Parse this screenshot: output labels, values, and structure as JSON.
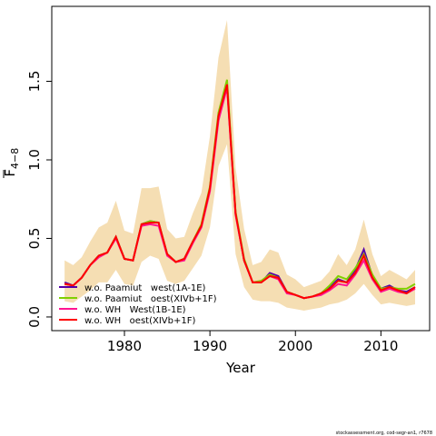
{
  "chart_data": {
    "type": "line",
    "ylabel": "F",
    "ylabel_sub": "4−8",
    "xlabel": "Year",
    "footer": "stockassessment.org, cod-segr-an1, r7678",
    "x": [
      1973,
      1974,
      1975,
      1976,
      1977,
      1978,
      1979,
      1980,
      1981,
      1982,
      1983,
      1984,
      1985,
      1986,
      1987,
      1988,
      1989,
      1990,
      1991,
      1992,
      1993,
      1994,
      1995,
      1996,
      1997,
      1998,
      1999,
      2000,
      2001,
      2002,
      2003,
      2004,
      2005,
      2006,
      2007,
      2008,
      2009,
      2010,
      2011,
      2012,
      2013,
      2014
    ],
    "band": {
      "color": "#f5deb3",
      "upper": [
        0.36,
        0.33,
        0.38,
        0.48,
        0.57,
        0.6,
        0.74,
        0.55,
        0.53,
        0.82,
        0.82,
        0.83,
        0.56,
        0.5,
        0.51,
        0.66,
        0.79,
        1.15,
        1.65,
        1.89,
        0.95,
        0.56,
        0.33,
        0.35,
        0.43,
        0.41,
        0.27,
        0.24,
        0.19,
        0.21,
        0.23,
        0.29,
        0.4,
        0.33,
        0.43,
        0.62,
        0.4,
        0.26,
        0.3,
        0.27,
        0.24,
        0.3
      ],
      "lower": [
        0.1,
        0.09,
        0.13,
        0.17,
        0.22,
        0.22,
        0.3,
        0.21,
        0.2,
        0.35,
        0.39,
        0.37,
        0.23,
        0.21,
        0.23,
        0.31,
        0.39,
        0.57,
        0.96,
        1.1,
        0.4,
        0.19,
        0.11,
        0.1,
        0.1,
        0.09,
        0.06,
        0.05,
        0.04,
        0.05,
        0.06,
        0.08,
        0.09,
        0.11,
        0.15,
        0.21,
        0.14,
        0.08,
        0.09,
        0.08,
        0.07,
        0.08
      ]
    },
    "series": [
      {
        "name": "w.o. Paamiut   west(1A-1E)",
        "color": "#5500aa",
        "values": [
          0.22,
          0.2,
          0.25,
          0.33,
          0.39,
          0.41,
          0.51,
          0.37,
          0.36,
          0.59,
          0.61,
          0.6,
          0.4,
          0.35,
          0.37,
          0.48,
          0.58,
          0.82,
          1.28,
          1.48,
          0.66,
          0.36,
          0.22,
          0.22,
          0.28,
          0.26,
          0.16,
          0.14,
          0.12,
          0.13,
          0.15,
          0.19,
          0.24,
          0.22,
          0.3,
          0.43,
          0.26,
          0.18,
          0.2,
          0.17,
          0.16,
          0.19
        ]
      },
      {
        "name": "w.o. Paamiut   oest(XIVb+1F)",
        "color": "#80d000",
        "values": [
          0.21,
          0.2,
          0.25,
          0.33,
          0.39,
          0.41,
          0.51,
          0.37,
          0.36,
          0.59,
          0.61,
          0.6,
          0.4,
          0.35,
          0.37,
          0.48,
          0.59,
          0.83,
          1.3,
          1.51,
          0.67,
          0.37,
          0.22,
          0.23,
          0.27,
          0.25,
          0.16,
          0.14,
          0.12,
          0.13,
          0.15,
          0.2,
          0.26,
          0.24,
          0.31,
          0.4,
          0.27,
          0.18,
          0.19,
          0.18,
          0.18,
          0.21
        ]
      },
      {
        "name": "w.o. WH   West(1B-1E)",
        "color": "#ff1493",
        "values": [
          0.21,
          0.2,
          0.25,
          0.33,
          0.38,
          0.41,
          0.5,
          0.37,
          0.36,
          0.58,
          0.59,
          0.58,
          0.39,
          0.35,
          0.36,
          0.47,
          0.57,
          0.8,
          1.25,
          1.46,
          0.65,
          0.36,
          0.22,
          0.22,
          0.26,
          0.24,
          0.15,
          0.14,
          0.12,
          0.13,
          0.14,
          0.17,
          0.21,
          0.2,
          0.27,
          0.36,
          0.24,
          0.16,
          0.18,
          0.16,
          0.15,
          0.18
        ]
      },
      {
        "name": "w.o. WH   oest(XIVb+1F)",
        "color": "#ff0000",
        "values": [
          0.21,
          0.2,
          0.25,
          0.33,
          0.39,
          0.41,
          0.51,
          0.37,
          0.36,
          0.59,
          0.6,
          0.6,
          0.4,
          0.35,
          0.37,
          0.48,
          0.58,
          0.82,
          1.28,
          1.48,
          0.66,
          0.36,
          0.22,
          0.22,
          0.26,
          0.25,
          0.16,
          0.14,
          0.12,
          0.13,
          0.15,
          0.18,
          0.23,
          0.22,
          0.28,
          0.39,
          0.25,
          0.17,
          0.19,
          0.17,
          0.15,
          0.19
        ]
      }
    ],
    "xlim": [
      1971.5,
      2015.7
    ],
    "ylim": [
      -0.087,
      1.977
    ],
    "xticks": [
      1980,
      1990,
      2000,
      2010
    ],
    "yticks": [
      {
        "value": 0,
        "label": "0.0"
      },
      0.5,
      {
        "value": 1,
        "label": "1.0"
      },
      1.5
    ],
    "legend": "bottom-left"
  }
}
